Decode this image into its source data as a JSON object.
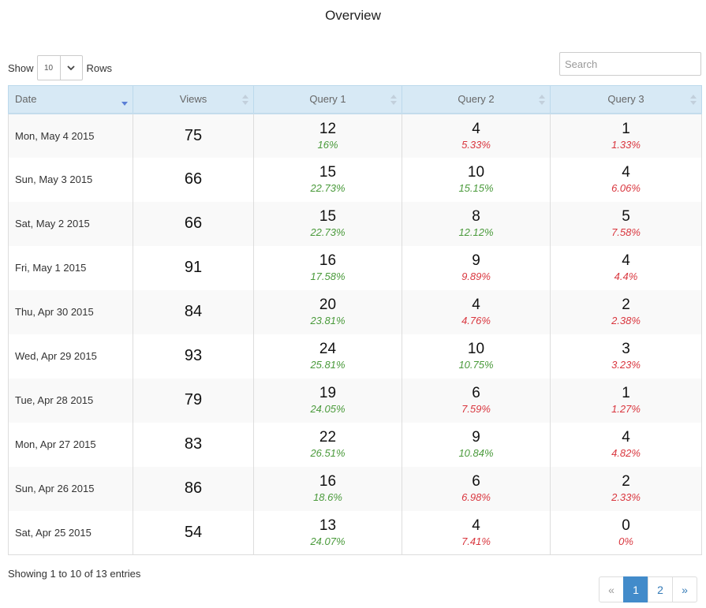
{
  "page": {
    "title": "Overview"
  },
  "length_control": {
    "show_label": "Show",
    "value": "10",
    "rows_label": "Rows"
  },
  "search": {
    "placeholder": "Search",
    "value": ""
  },
  "table": {
    "columns": [
      "Date",
      "Views",
      "Query 1",
      "Query 2",
      "Query 3"
    ],
    "sorted_column": "Date",
    "sort_direction": "desc",
    "rows": [
      {
        "date": "Mon, May 4 2015",
        "views": "75",
        "q1": "12",
        "q1_pct": "16%",
        "q2": "4",
        "q2_pct": "5.33%",
        "q3": "1",
        "q3_pct": "1.33%"
      },
      {
        "date": "Sun, May 3 2015",
        "views": "66",
        "q1": "15",
        "q1_pct": "22.73%",
        "q2": "10",
        "q2_pct": "15.15%",
        "q3": "4",
        "q3_pct": "6.06%"
      },
      {
        "date": "Sat, May 2 2015",
        "views": "66",
        "q1": "15",
        "q1_pct": "22.73%",
        "q2": "8",
        "q2_pct": "12.12%",
        "q3": "5",
        "q3_pct": "7.58%"
      },
      {
        "date": "Fri, May 1 2015",
        "views": "91",
        "q1": "16",
        "q1_pct": "17.58%",
        "q2": "9",
        "q2_pct": "9.89%",
        "q3": "4",
        "q3_pct": "4.4%"
      },
      {
        "date": "Thu, Apr 30 2015",
        "views": "84",
        "q1": "20",
        "q1_pct": "23.81%",
        "q2": "4",
        "q2_pct": "4.76%",
        "q3": "2",
        "q3_pct": "2.38%"
      },
      {
        "date": "Wed, Apr 29 2015",
        "views": "93",
        "q1": "24",
        "q1_pct": "25.81%",
        "q2": "10",
        "q2_pct": "10.75%",
        "q3": "3",
        "q3_pct": "3.23%"
      },
      {
        "date": "Tue, Apr 28 2015",
        "views": "79",
        "q1": "19",
        "q1_pct": "24.05%",
        "q2": "6",
        "q2_pct": "7.59%",
        "q3": "1",
        "q3_pct": "1.27%"
      },
      {
        "date": "Mon, Apr 27 2015",
        "views": "83",
        "q1": "22",
        "q1_pct": "26.51%",
        "q2": "9",
        "q2_pct": "10.84%",
        "q3": "4",
        "q3_pct": "4.82%"
      },
      {
        "date": "Sun, Apr 26 2015",
        "views": "86",
        "q1": "16",
        "q1_pct": "18.6%",
        "q2": "6",
        "q2_pct": "6.98%",
        "q3": "2",
        "q3_pct": "2.33%"
      },
      {
        "date": "Sat, Apr 25 2015",
        "views": "54",
        "q1": "13",
        "q1_pct": "24.07%",
        "q2": "4",
        "q2_pct": "7.41%",
        "q3": "0",
        "q3_pct": "0%"
      }
    ]
  },
  "info": {
    "text": "Showing 1 to 10 of 13 entries"
  },
  "pagination": {
    "prev": "«",
    "pages": [
      "1",
      "2"
    ],
    "active": "1",
    "next": "»"
  },
  "colors": {
    "positive_pct": "#4a9a3b",
    "negative_pct": "#d9363e",
    "header_bg": "#d7e9f5",
    "active_page": "#428bca"
  },
  "icons": {
    "sort_active": "sort-desc-icon",
    "sort_inactive": "sort-both-icon",
    "select_caret": "chevron-down-icon"
  }
}
